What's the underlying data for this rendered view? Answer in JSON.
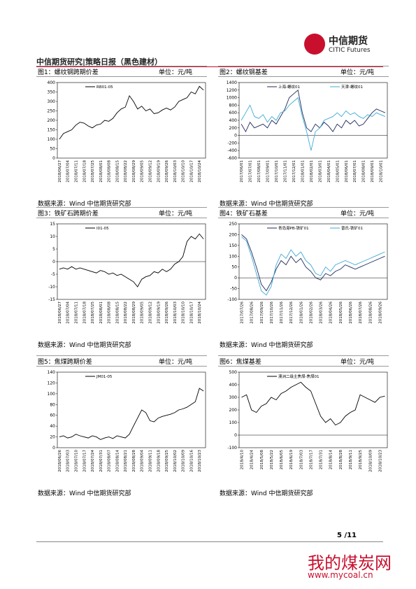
{
  "header": {
    "title": "中信期货研究|策略日报（黑色建材）",
    "logo_cn": "中信期货",
    "logo_en": "CITIC Futures"
  },
  "chart_data": [
    {
      "type": "line",
      "title": "图1：螺纹钢跨期价差",
      "unit": "单位：元/吨",
      "source": "数据来源：Wind  中信期货研究部",
      "categories": [
        "2018/06/27",
        null,
        "2018/07/04",
        null,
        "2018/07/11",
        null,
        "2018/07/18",
        null,
        "2018/07/25",
        null,
        "2018/08/01",
        null,
        "2018/08/08",
        null,
        "2018/08/15",
        null,
        "2018/08/22",
        null,
        "2018/08/29",
        null,
        "2018/09/05",
        null,
        "2018/09/12",
        null,
        "2018/09/19",
        null,
        "2018/09/26",
        null,
        "2018/10/03",
        null,
        "2018/10/10",
        null,
        "2018/10/17",
        null,
        "2018/10/24",
        null
      ],
      "series": [
        {
          "name": "RB01-05",
          "color": "#000000",
          "values": [
            100,
            130,
            140,
            150,
            175,
            190,
            185,
            170,
            160,
            175,
            180,
            200,
            195,
            210,
            240,
            260,
            270,
            330,
            300,
            260,
            275,
            250,
            260,
            235,
            240,
            255,
            265,
            255,
            270,
            300,
            310,
            320,
            350,
            340,
            380,
            360
          ]
        }
      ],
      "ylim": [
        0,
        400
      ],
      "yticks": [
        0,
        50,
        100,
        150,
        200,
        250,
        300,
        350,
        400
      ]
    },
    {
      "type": "line",
      "title": "图2：螺纹钢基差",
      "unit": "单位：元/吨",
      "source": "数据来源：Wind  中信期货研究部",
      "categories": [
        "2017/06/01",
        null,
        "2017/07/01",
        null,
        "2017/08/01",
        null,
        "2017/09/01",
        null,
        "2017/10/01",
        null,
        "2017/11/01",
        null,
        "2017/12/01",
        null,
        "2018/01/01",
        null,
        "2018/02/01",
        null,
        "2018/03/01",
        null,
        "2018/04/01",
        null,
        "2018/05/01",
        null,
        "2018/06/01",
        null,
        "2018/07/01",
        null,
        "2018/08/01",
        null,
        "2018/09/01",
        null,
        "2018/10/01",
        null
      ],
      "series": [
        {
          "name": "上海-螺纹01",
          "color": "#1f2a5c",
          "values": [
            300,
            100,
            350,
            200,
            250,
            300,
            200,
            400,
            300,
            500,
            700,
            1000,
            1100,
            1200,
            600,
            200,
            100,
            300,
            200,
            350,
            250,
            100,
            300,
            200,
            400,
            300,
            400,
            250,
            300,
            450,
            600,
            700,
            650,
            600
          ]
        },
        {
          "name": "天津-螺纹01",
          "color": "#3fa9d5",
          "values": [
            400,
            600,
            800,
            500,
            450,
            550,
            350,
            500,
            400,
            600,
            650,
            800,
            900,
            1000,
            500,
            100,
            -400,
            100,
            200,
            400,
            450,
            500,
            600,
            500,
            650,
            550,
            600,
            500,
            450,
            550,
            500,
            600,
            550,
            500
          ]
        }
      ],
      "ylim": [
        -600,
        1400
      ],
      "yticks": [
        -600,
        -400,
        -200,
        0,
        200,
        400,
        600,
        800,
        1000,
        1200,
        1400
      ]
    },
    {
      "type": "line",
      "title": "图3：铁矿石跨期价差",
      "unit": "单位：元/吨",
      "source": "数据来源：Wind  中信期货研究部",
      "categories": [
        "2018/06/27",
        null,
        "2018/07/04",
        null,
        "2018/07/11",
        null,
        "2018/07/18",
        null,
        "2018/07/25",
        null,
        "2018/08/01",
        null,
        "2018/08/08",
        null,
        "2018/08/15",
        null,
        "2018/08/22",
        null,
        "2018/08/29",
        null,
        "2018/09/05",
        null,
        "2018/09/12",
        null,
        "2018/09/19",
        null,
        "2018/09/26",
        null,
        "2018/10/03",
        null,
        "2018/10/10",
        null,
        "2018/10/17",
        null,
        "2018/10/24",
        null
      ],
      "series": [
        {
          "name": "I01-05",
          "color": "#000000",
          "values": [
            -3,
            -2.5,
            -3,
            -2,
            -3,
            -2.5,
            -3,
            -3.5,
            -4,
            -4.5,
            -3.5,
            -4,
            -5,
            -4.5,
            -5.5,
            -5,
            -6,
            -7,
            -8,
            -10,
            -7,
            -6,
            -5.5,
            -4,
            -4.5,
            -3,
            -4,
            -3,
            -1,
            0,
            2,
            8,
            10,
            9,
            11,
            9
          ]
        }
      ],
      "ylim": [
        -15,
        15
      ],
      "yticks": [
        -15,
        -10,
        -5,
        0,
        5,
        10,
        15
      ]
    },
    {
      "type": "line",
      "title": "图4：铁矿石基差",
      "unit": "单位：元/吨",
      "source": "数据来源：Wind  中信期货研究部",
      "categories": [
        "2017/07/26",
        null,
        "2017/08/26",
        null,
        "2017/09/26",
        null,
        "2017/10/26",
        null,
        "2017/11/26",
        null,
        "2017/12/26",
        null,
        "2018/01/26",
        null,
        "2018/02/26",
        null,
        "2018/03/26",
        null,
        "2018/04/26",
        null,
        "2018/05/26",
        null,
        "2018/06/26",
        null,
        "2018/07/26",
        null,
        "2018/08/26",
        null,
        "2018/09/26",
        null
      ],
      "series": [
        {
          "name": "青岛港PB-铁矿01",
          "color": "#1f2a5c",
          "values": [
            200,
            180,
            120,
            50,
            -30,
            -60,
            -20,
            40,
            80,
            60,
            100,
            70,
            90,
            50,
            30,
            0,
            -10,
            20,
            10,
            30,
            40,
            60,
            50,
            40,
            50,
            60,
            70,
            80,
            90,
            100
          ]
        },
        {
          "name": "普氏-铁矿01",
          "color": "#3fa9d5",
          "values": [
            190,
            170,
            100,
            20,
            -60,
            -80,
            -40,
            60,
            110,
            90,
            130,
            100,
            120,
            80,
            60,
            20,
            10,
            50,
            30,
            60,
            70,
            80,
            70,
            60,
            70,
            80,
            90,
            100,
            110,
            120
          ]
        }
      ],
      "ylim": [
        -100,
        250
      ],
      "yticks": [
        -100,
        -50,
        0,
        50,
        100,
        150,
        200,
        250
      ]
    },
    {
      "type": "line",
      "title": "图5：焦煤跨期价差",
      "unit": "单位：元/吨",
      "source": "数据来源：Wind  中信期货研究部",
      "categories": [
        "2018/06/26",
        null,
        "2018/07/03",
        null,
        "2018/07/10",
        null,
        "2018/07/17",
        null,
        "2018/07/24",
        null,
        "2018/07/31",
        null,
        "2018/08/07",
        null,
        "2018/08/14",
        null,
        "2018/08/21",
        null,
        "2018/08/28",
        null,
        "2018/09/04",
        null,
        "2018/09/11",
        null,
        "2018/09/18",
        null,
        "2018/09/25",
        null,
        "2018/10/02",
        null,
        "2018/10/09",
        null,
        "2018/10/16",
        null,
        "2018/10/23",
        null
      ],
      "series": [
        {
          "name": "JM01-05",
          "color": "#000000",
          "values": [
            20,
            22,
            18,
            20,
            25,
            22,
            20,
            18,
            22,
            20,
            15,
            18,
            20,
            17,
            22,
            20,
            18,
            25,
            40,
            55,
            70,
            65,
            50,
            48,
            55,
            58,
            60,
            62,
            65,
            70,
            72,
            75,
            80,
            85,
            110,
            105
          ]
        }
      ],
      "ylim": [
        0,
        140
      ],
      "yticks": [
        0,
        20,
        40,
        60,
        80,
        100,
        120,
        140
      ]
    },
    {
      "type": "line",
      "title": "图6：焦煤基差",
      "unit": "单位：元/吨",
      "source": "数据来源：Wind  中信期货研究部",
      "categories": [
        "2018/4/10",
        null,
        "2018/4/24",
        null,
        "2018/5/08",
        null,
        "2018/5/22",
        null,
        "2018/6/05",
        null,
        "2018/6/19",
        null,
        "2018/7/03",
        null,
        "2018/7/17",
        null,
        "2018/7/31",
        null,
        "2018/8/14",
        null,
        "2018/8/28",
        null,
        "2018/9/11",
        null,
        "2018/9/25",
        null,
        "2018/10/09",
        null,
        "2018/10/23",
        null
      ],
      "series": [
        {
          "name": "澳洲二级主焦煤-焦煤01",
          "color": "#000000",
          "values": [
            300,
            320,
            200,
            180,
            230,
            250,
            300,
            280,
            330,
            350,
            380,
            400,
            420,
            380,
            350,
            250,
            150,
            100,
            130,
            80,
            100,
            150,
            180,
            200,
            320,
            300,
            280,
            260,
            300,
            310
          ]
        }
      ],
      "ylim": [
        -100,
        500
      ],
      "yticks": [
        -100,
        0,
        100,
        200,
        300,
        400,
        500
      ]
    }
  ],
  "footer": {
    "page": "5 /11",
    "watermark": "我的煤炭网",
    "url": "www.mycoal.cn"
  }
}
